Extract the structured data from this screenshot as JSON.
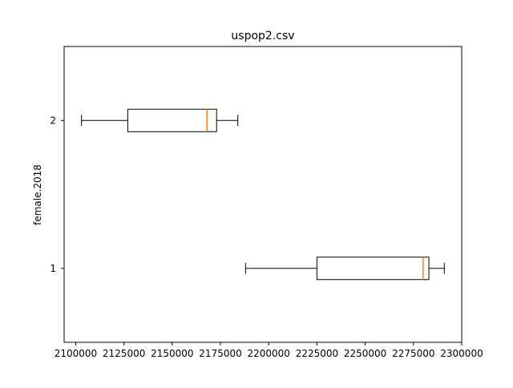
{
  "chart_data": {
    "type": "boxplot",
    "orientation": "horizontal",
    "title": "uspop2.csv",
    "xlabel": "",
    "ylabel": "female.2018",
    "xlim": [
      2094000,
      2300000
    ],
    "xticks": [
      2100000,
      2125000,
      2150000,
      2175000,
      2200000,
      2225000,
      2250000,
      2275000,
      2300000
    ],
    "xtick_labels": [
      "2100000",
      "2125000",
      "2150000",
      "2175000",
      "2200000",
      "2225000",
      "2250000",
      "2275000",
      "2300000"
    ],
    "ylim": [
      0.5,
      2.5
    ],
    "categories": [
      "1",
      "2"
    ],
    "boxes": [
      {
        "position": 1,
        "whisker_low": 2188000,
        "q1": 2225000,
        "median": 2280000,
        "q3": 2283000,
        "whisker_high": 2291000
      },
      {
        "position": 2,
        "whisker_low": 2103000,
        "q1": 2127000,
        "median": 2168000,
        "q3": 2173000,
        "whisker_high": 2184000
      }
    ],
    "grid": false,
    "colors": {
      "box": "#000000",
      "median": "#ff7f0e"
    }
  }
}
